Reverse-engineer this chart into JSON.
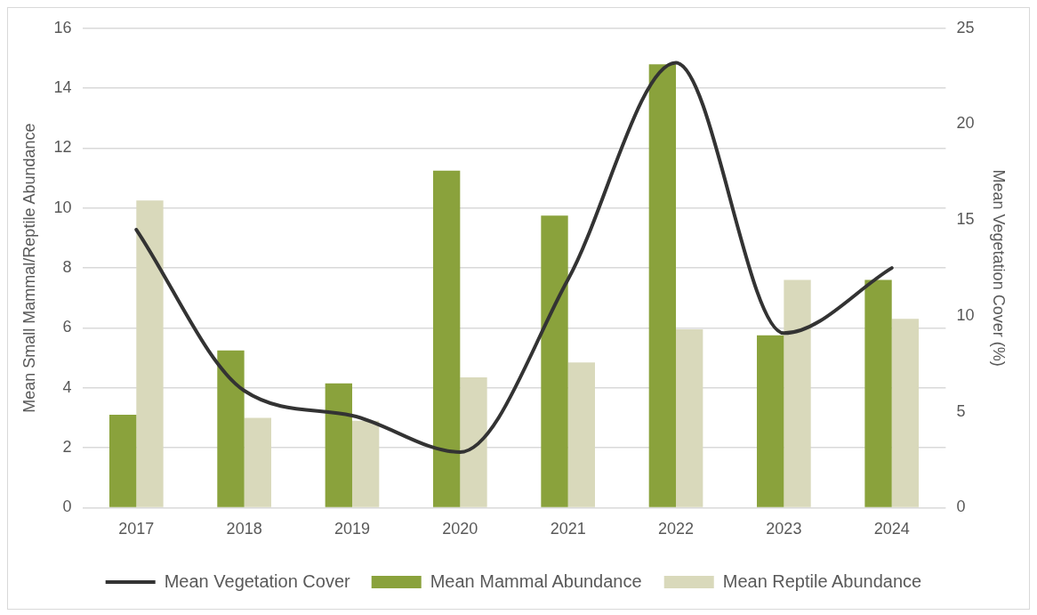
{
  "chart_data": {
    "type": "bar",
    "ylabel": "Mean Small Mammal/Reptile Abundance",
    "y2label": "Mean Vegetation Cover (%)",
    "categories": [
      "2017",
      "2018",
      "2019",
      "2020",
      "2021",
      "2022",
      "2023",
      "2024"
    ],
    "series": [
      {
        "name": "Mean Mammal Abundance",
        "color": "#8aa23c",
        "values": [
          3.1,
          5.25,
          4.15,
          11.25,
          9.75,
          14.8,
          5.75,
          7.6
        ]
      },
      {
        "name": "Mean Reptile Abundance",
        "color": "#d9d9bb",
        "values": [
          10.25,
          3.0,
          2.9,
          4.35,
          4.85,
          5.95,
          7.6,
          6.3
        ]
      },
      {
        "name": "Mean Vegetation Cover",
        "type": "line",
        "axis": "y2",
        "color": "#333333",
        "values": [
          14.5,
          6.1,
          4.8,
          2.9,
          11.9,
          23.2,
          9.1,
          12.5
        ]
      }
    ],
    "ylim": [
      0,
      16
    ],
    "yticks": [
      0,
      2,
      4,
      6,
      8,
      10,
      12,
      14,
      16
    ],
    "y2lim": [
      0,
      25
    ],
    "y2ticks": [
      0,
      5,
      10,
      15,
      20,
      25
    ],
    "grid": "y",
    "legend": "bottom",
    "marker": "none"
  }
}
